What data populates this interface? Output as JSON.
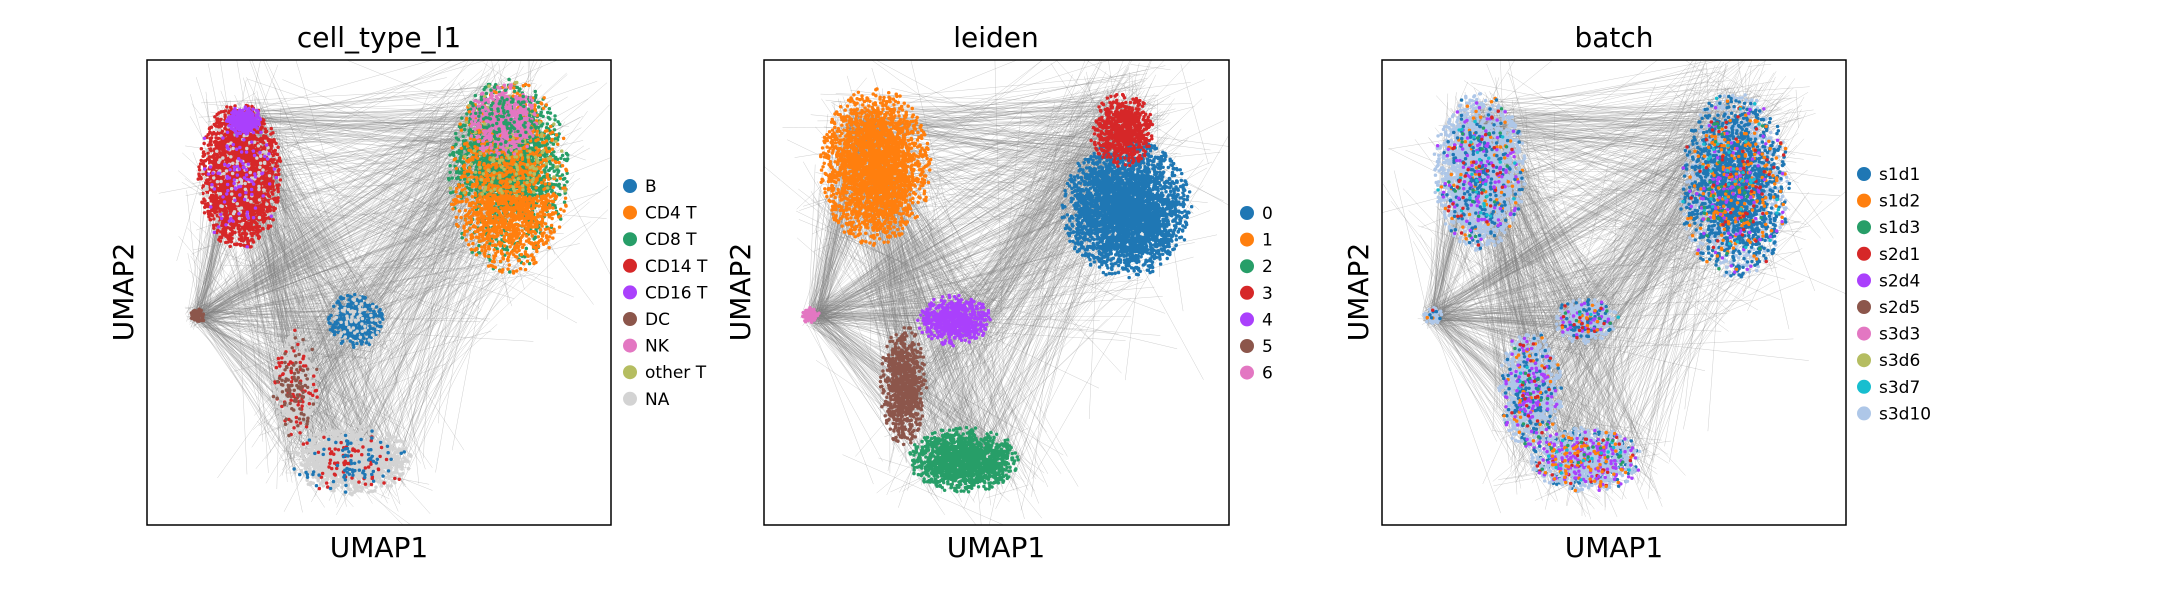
{
  "chart_data": [
    {
      "type": "scatter",
      "title": "cell_type_l1",
      "xlabel": "UMAP1",
      "ylabel": "UMAP2",
      "ticks": "none",
      "edges_color": "#808080",
      "legend_placement": "right",
      "legend": [
        {
          "label": "B",
          "color": "#1f77b4"
        },
        {
          "label": "CD4 T",
          "color": "#ff7f0e"
        },
        {
          "label": "CD8 T",
          "color": "#279e68"
        },
        {
          "label": "CD14 T",
          "color": "#d62728"
        },
        {
          "label": "CD16 T",
          "color": "#aa40fc"
        },
        {
          "label": "DC",
          "color": "#8c564b"
        },
        {
          "label": "NK",
          "color": "#e377c2"
        },
        {
          "label": "other T",
          "color": "#b5bd61"
        },
        {
          "label": "NA",
          "color": "#d3d3d3"
        }
      ]
    },
    {
      "type": "scatter",
      "title": "leiden",
      "xlabel": "UMAP1",
      "ylabel": "UMAP2",
      "ticks": "none",
      "edges_color": "#808080",
      "legend_placement": "right",
      "legend": [
        {
          "label": "0",
          "color": "#1f77b4"
        },
        {
          "label": "1",
          "color": "#ff7f0e"
        },
        {
          "label": "2",
          "color": "#279e68"
        },
        {
          "label": "3",
          "color": "#d62728"
        },
        {
          "label": "4",
          "color": "#aa40fc"
        },
        {
          "label": "5",
          "color": "#8c564b"
        },
        {
          "label": "6",
          "color": "#e377c2"
        }
      ]
    },
    {
      "type": "scatter",
      "title": "batch",
      "xlabel": "UMAP1",
      "ylabel": "UMAP2",
      "ticks": "none",
      "edges_color": "#808080",
      "legend_placement": "right",
      "legend": [
        {
          "label": "s1d1",
          "color": "#1f77b4"
        },
        {
          "label": "s1d2",
          "color": "#ff7f0e"
        },
        {
          "label": "s1d3",
          "color": "#279e68"
        },
        {
          "label": "s2d1",
          "color": "#d62728"
        },
        {
          "label": "s2d4",
          "color": "#aa40fc"
        },
        {
          "label": "s2d5",
          "color": "#8c564b"
        },
        {
          "label": "s3d3",
          "color": "#e377c2"
        },
        {
          "label": "s3d6",
          "color": "#b5bd61"
        },
        {
          "label": "s3d7",
          "color": "#17becf"
        },
        {
          "label": "s3d10",
          "color": "#aec7e8"
        }
      ]
    }
  ]
}
